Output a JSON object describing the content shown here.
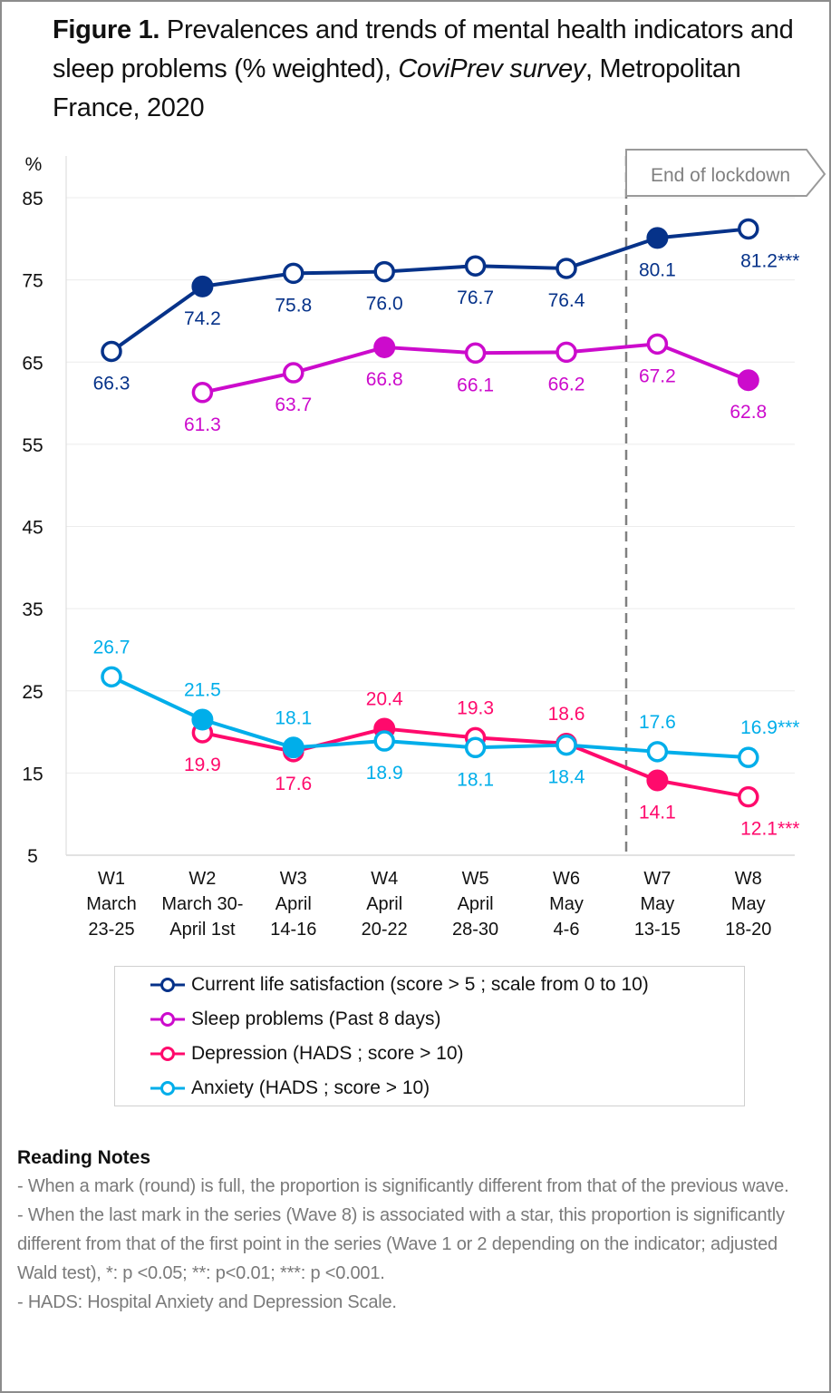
{
  "title": {
    "bold": "Figure 1.",
    "part1": " Prevalences and trends of mental health indicators and sleep problems (% weighted), ",
    "italic1": "CoviPrev survey",
    "part2": ", Metropolitan France, 2020"
  },
  "chart_data": {
    "type": "line",
    "title": "Figure 1. Prevalences and trends of mental health indicators and sleep problems (% weighted), CoviPrev survey, Metropolitan France, 2020",
    "ylabel": "%",
    "xlabel": "",
    "ylim": [
      5,
      85
    ],
    "yticks": [
      5,
      15,
      25,
      35,
      45,
      55,
      65,
      75,
      85
    ],
    "grid": true,
    "categories": [
      {
        "wave": "W1",
        "line2": "March",
        "line3": "23-25"
      },
      {
        "wave": "W2",
        "line2": "March 30-",
        "line3": "April 1st"
      },
      {
        "wave": "W3",
        "line2": "April",
        "line3": "14-16"
      },
      {
        "wave": "W4",
        "line2": "April",
        "line3": "20-22"
      },
      {
        "wave": "W5",
        "line2": "April",
        "line3": "28-30"
      },
      {
        "wave": "W6",
        "line2": "May",
        "line3": "4-6"
      },
      {
        "wave": "W7",
        "line2": "May",
        "line3": "13-15"
      },
      {
        "wave": "W8",
        "line2": "May",
        "line3": "18-20"
      }
    ],
    "annotation": {
      "label": "End of lockdown",
      "between_categories": [
        "W6",
        "W7"
      ],
      "style": "dashed-vertical-line"
    },
    "legend_position": "bottom",
    "series": [
      {
        "name": "Current life satisfaction (score > 5 ; scale from 0 to 10)",
        "color": "#063289",
        "values": [
          66.3,
          74.2,
          75.8,
          76.0,
          76.7,
          76.4,
          80.1,
          81.2
        ],
        "labels": [
          "66.3",
          "74.2",
          "75.8",
          "76.0",
          "76.7",
          "76.4",
          "80.1",
          "81.2***"
        ],
        "label_pos": [
          "below",
          "below",
          "below",
          "below",
          "below",
          "below",
          "below",
          "below"
        ],
        "filled": [
          false,
          true,
          false,
          false,
          false,
          false,
          true,
          false
        ]
      },
      {
        "name": "Sleep problems (Past 8 days)",
        "color": "#CC0BCC",
        "values": [
          null,
          61.3,
          63.7,
          66.8,
          66.1,
          66.2,
          67.2,
          62.8
        ],
        "labels": [
          null,
          "61.3",
          "63.7",
          "66.8",
          "66.1",
          "66.2",
          "67.2",
          "62.8"
        ],
        "label_pos": [
          null,
          "below",
          "below",
          "below",
          "below",
          "below",
          "below",
          "below"
        ],
        "filled": [
          false,
          false,
          false,
          true,
          false,
          false,
          false,
          true
        ]
      },
      {
        "name": "Depression (HADS ; score > 10)",
        "color": "#FF0A6C",
        "values": [
          null,
          19.9,
          17.6,
          20.4,
          19.3,
          18.6,
          14.1,
          12.1
        ],
        "labels": [
          null,
          "19.9",
          "17.6",
          "20.4",
          "19.3",
          "18.6",
          "14.1",
          "12.1***"
        ],
        "label_pos": [
          null,
          "below",
          "below",
          "above",
          "above",
          "above",
          "below",
          "below"
        ],
        "filled": [
          false,
          false,
          false,
          true,
          false,
          false,
          true,
          false
        ]
      },
      {
        "name": "Anxiety (HADS ; score > 10)",
        "color": "#00AEEA",
        "values": [
          26.7,
          21.5,
          18.1,
          18.9,
          18.1,
          18.4,
          17.6,
          16.9
        ],
        "labels": [
          "26.7",
          "21.5",
          "18.1",
          "18.9",
          "18.1",
          "18.4",
          "17.6",
          "16.9***"
        ],
        "label_pos": [
          "above",
          "above",
          "above",
          "below",
          "below",
          "below",
          "above",
          "above"
        ],
        "filled": [
          false,
          true,
          true,
          false,
          false,
          false,
          false,
          false
        ]
      }
    ]
  },
  "legend": {
    "items": [
      {
        "label": "Current life satisfaction (score > 5 ; scale from 0 to 10)",
        "color": "#063289"
      },
      {
        "label": "Sleep problems (Past 8 days)",
        "color": "#CC0BCC"
      },
      {
        "label": "Depression (HADS ; score > 10)",
        "color": "#FF0A6C"
      },
      {
        "label": "Anxiety (HADS ; score > 10)",
        "color": "#00AEEA"
      }
    ]
  },
  "notes": {
    "title": "Reading Notes",
    "lines": [
      "- When a mark (round) is full, the proportion is significantly different from that of the previous wave.",
      "- When the last mark in the series (Wave 8) is associated with a star, this proportion is significantly different from that of the first point in the series (Wave 1 or 2 depending on the indicator; adjusted Wald test), *: p <0.05; **: p<0.01; ***: p <0.001.",
      "- HADS: Hospital Anxiety and Depression Scale."
    ]
  }
}
